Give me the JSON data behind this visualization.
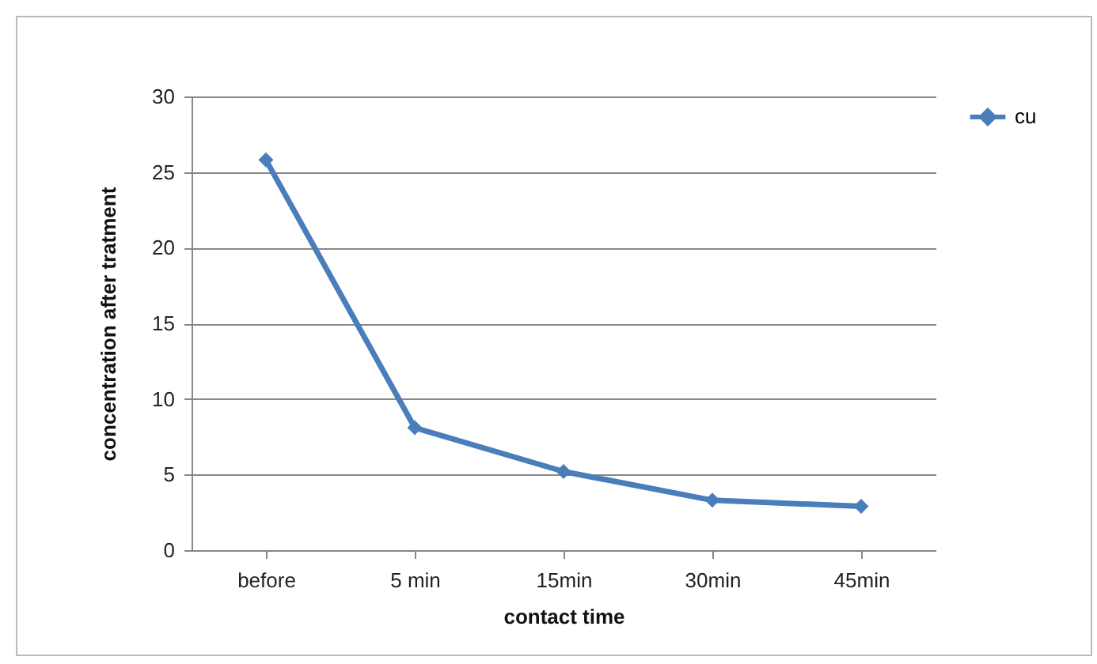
{
  "chart_data": {
    "type": "line",
    "xlabel": "contact  time",
    "ylabel": "concentration  after  tratment",
    "categories": [
      "before",
      "5 min",
      "15min",
      "30min",
      "45min"
    ],
    "series": [
      {
        "name": "cu",
        "color": "#4a7ebb",
        "values": [
          25.8,
          8.1,
          5.2,
          3.3,
          2.9
        ]
      }
    ],
    "ylim": [
      0,
      30
    ],
    "yticks": [
      0,
      5,
      10,
      15,
      20,
      25,
      30
    ],
    "grid": "y",
    "legend": "right",
    "marker": "diamond",
    "line_style": "solid"
  }
}
